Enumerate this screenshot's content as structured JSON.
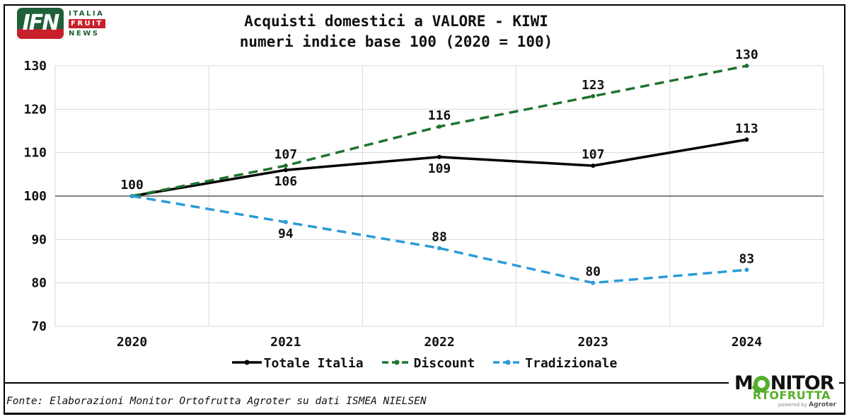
{
  "header": {
    "ifn_logo": {
      "acronym": "IFN",
      "word1": "ITALIA",
      "word2": "FRUIT",
      "word3": "NEWS",
      "green": "#1E6038",
      "red": "#C7202C"
    },
    "title_line1": "Acquisti domestici a VALORE - KIWI",
    "title_line2": "numeri indice base 100 (2020 = 100)"
  },
  "chart_data": {
    "type": "line",
    "title": "Acquisti domestici a VALORE - KIWI",
    "subtitle": "numeri indice base 100 (2020 = 100)",
    "categories": [
      "2020",
      "2021",
      "2022",
      "2023",
      "2024"
    ],
    "series": [
      {
        "name": "Totale Italia",
        "color": "#000000",
        "dash": "solid",
        "values": [
          100,
          106,
          109,
          107,
          113
        ],
        "labels": [
          "100",
          "106",
          "109",
          "107",
          "113"
        ],
        "label_positions": [
          "above",
          "below",
          "below",
          "above",
          "above"
        ]
      },
      {
        "name": "Discount",
        "color": "#1E7330",
        "dash": "dashed",
        "values": [
          100,
          107,
          116,
          123,
          130
        ],
        "labels": [
          null,
          "107",
          "116",
          "123",
          "130"
        ],
        "label_positions": [
          null,
          "above",
          "above",
          "above",
          "above"
        ]
      },
      {
        "name": "Tradizionale",
        "color": "#2B9BD7",
        "dash": "dashed",
        "values": [
          100,
          94,
          88,
          80,
          83
        ],
        "labels": [
          null,
          "94",
          "88",
          "80",
          "83"
        ],
        "label_positions": [
          null,
          "below",
          "above",
          "above",
          "above"
        ]
      }
    ],
    "y_ticks": [
      70,
      80,
      90,
      100,
      110,
      120,
      130
    ],
    "ylim": [
      70,
      130
    ],
    "baseline": 100,
    "grid": true,
    "grid_color": "#D9D9D9",
    "baseline_color": "#595959",
    "tick_label_color": "#111111",
    "legend_position": "bottom",
    "xlabel": "",
    "ylabel": ""
  },
  "footer": {
    "source": "Fonte: Elaborazioni Monitor Ortofrutta Agroter su dati ISMEA NIELSEN"
  },
  "monitor_logo": {
    "part1": "M",
    "part2": "NITOR",
    "line2": "RTOFRUTTA",
    "powered_by": "powered by",
    "brand": "Agroter",
    "green": "#56AF2B"
  }
}
